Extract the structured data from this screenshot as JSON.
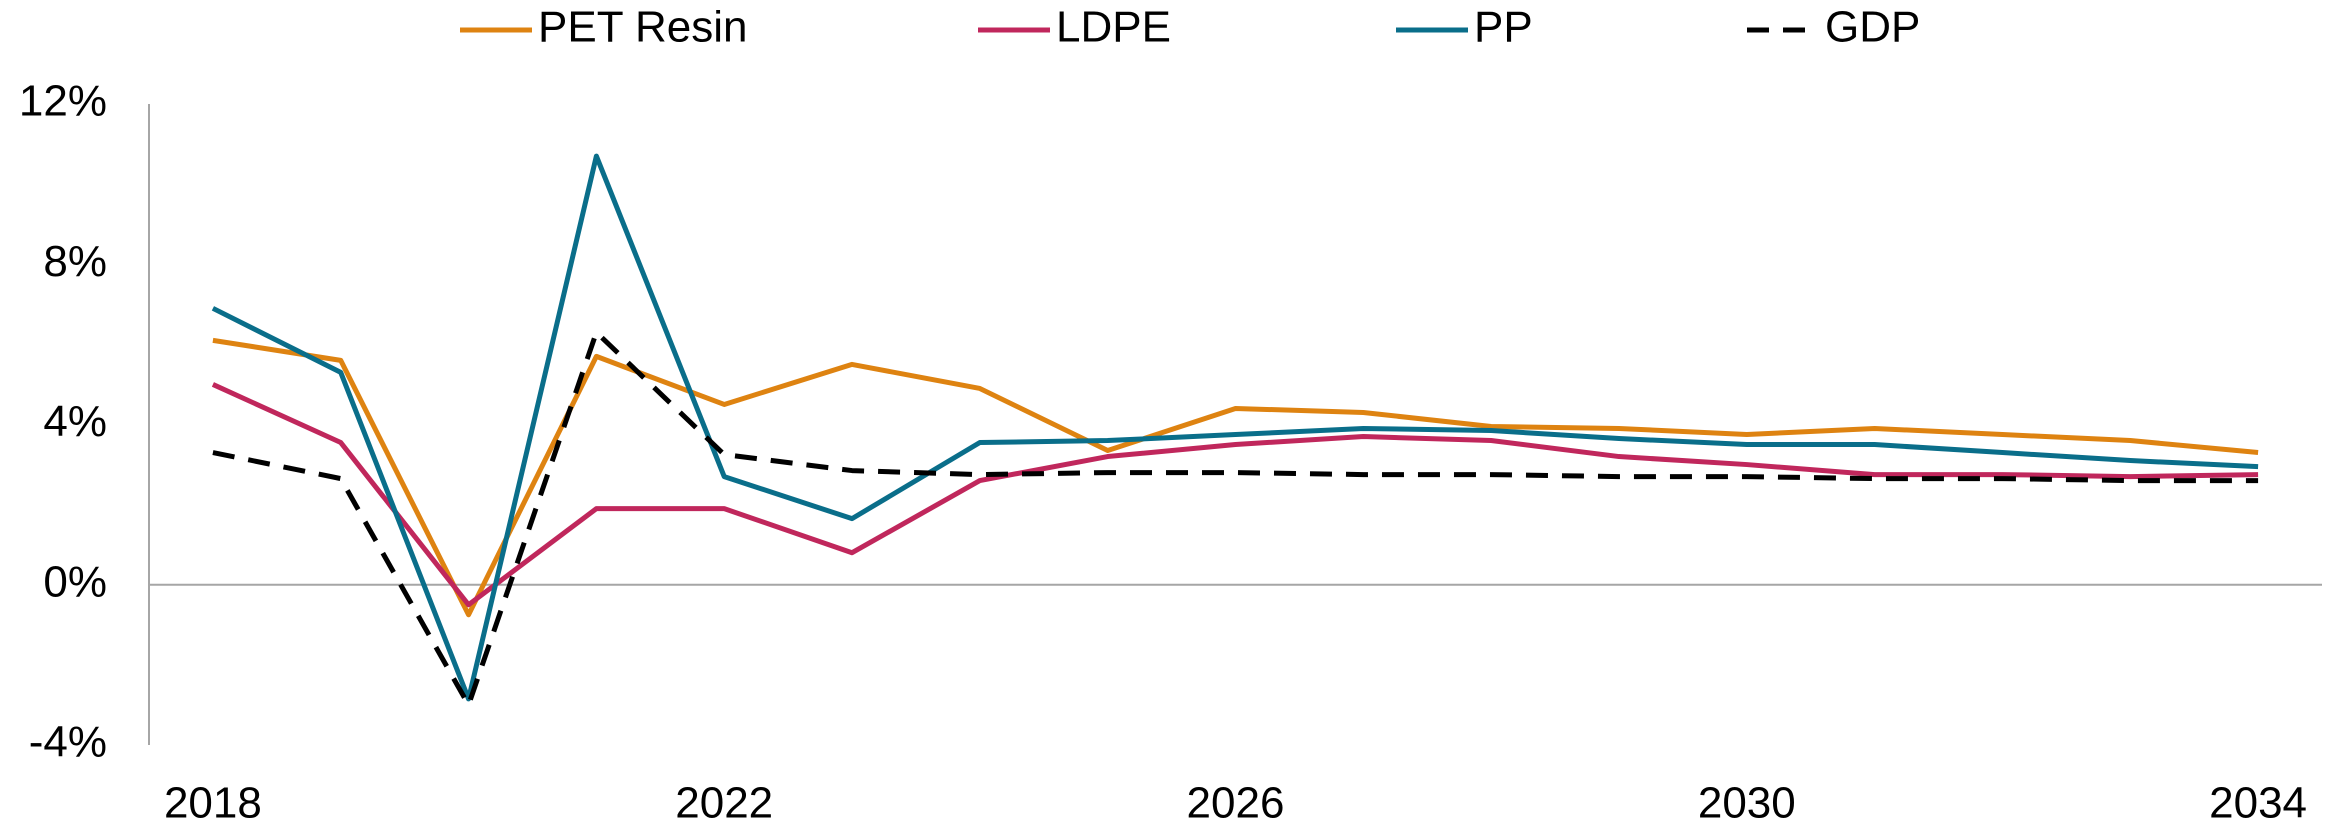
{
  "chart_data": {
    "type": "line",
    "x": [
      2018,
      2019,
      2020,
      2021,
      2022,
      2023,
      2024,
      2025,
      2026,
      2027,
      2028,
      2029,
      2030,
      2031,
      2032,
      2033,
      2034
    ],
    "xlim": [
      2017.5,
      2034.5
    ],
    "xticks": [
      2018,
      2022,
      2026,
      2030,
      2034
    ],
    "ylim": [
      -4,
      12
    ],
    "yticks": [
      {
        "value": -4,
        "label": "-4%"
      },
      {
        "value": 0,
        "label": "0%"
      },
      {
        "value": 4,
        "label": "4%"
      },
      {
        "value": 8,
        "label": "8%"
      },
      {
        "value": 12,
        "label": "12%"
      }
    ],
    "legend": "top",
    "series": [
      {
        "name": "PET Resin",
        "color": "#de8311",
        "values": [
          6.1,
          5.6,
          -0.75,
          5.7,
          4.5,
          5.5,
          4.9,
          3.35,
          4.4,
          4.3,
          3.95,
          3.9,
          3.75,
          3.9,
          3.75,
          3.6,
          3.3
        ]
      },
      {
        "name": "LDPE",
        "color": "#c0275c",
        "values": [
          5.0,
          3.55,
          -0.5,
          1.9,
          1.9,
          0.8,
          2.6,
          3.2,
          3.5,
          3.7,
          3.6,
          3.2,
          3.0,
          2.75,
          2.75,
          2.7,
          2.75
        ]
      },
      {
        "name": "PP",
        "color": "#0a6e8a",
        "values": [
          6.9,
          5.3,
          -2.85,
          10.7,
          2.7,
          1.65,
          3.55,
          3.6,
          3.75,
          3.9,
          3.85,
          3.65,
          3.5,
          3.5,
          3.3,
          3.1,
          2.95
        ]
      },
      {
        "name": "GDP",
        "color": "#000000",
        "line_style": "dashed",
        "values": [
          3.3,
          2.65,
          -3.0,
          6.3,
          3.25,
          2.85,
          2.75,
          2.8,
          2.8,
          2.75,
          2.75,
          2.7,
          2.7,
          2.65,
          2.65,
          2.6,
          2.6
        ]
      }
    ]
  }
}
